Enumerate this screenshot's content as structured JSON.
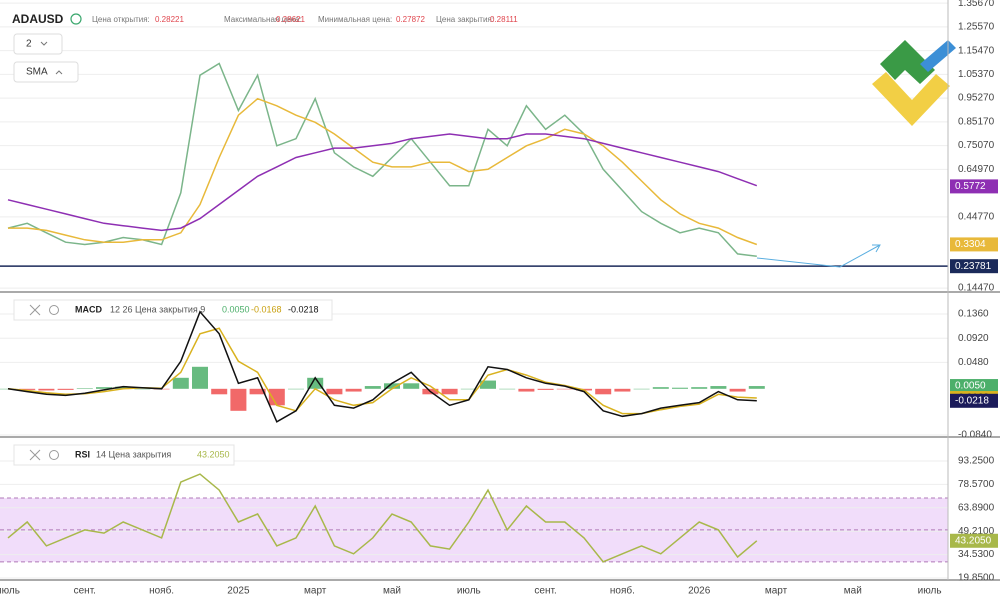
{
  "header": {
    "symbol": "ADAUSD",
    "open_label": "Цена открытия:",
    "open": "0.28221",
    "high_label": "Максимальная цена:",
    "high": "0.28621",
    "low_label": "Минимальная цена:",
    "low": "0.27872",
    "close_label": "Цена закрытия:",
    "close": "0.28111",
    "period": "2",
    "indicator": "SMA"
  },
  "chart_data": [
    {
      "type": "line",
      "grid": true,
      "ylim": [
        0.128,
        1.37
      ],
      "yticks": [
        {
          "value": 1.3567,
          "label": "1.35670"
        },
        {
          "value": 1.2557,
          "label": "1.25570"
        },
        {
          "value": 1.1547,
          "label": "1.15470"
        },
        {
          "value": 1.0537,
          "label": "1.05370"
        },
        {
          "value": 0.9527,
          "label": "0.95270"
        },
        {
          "value": 0.8517,
          "label": "0.85170"
        },
        {
          "value": 0.7507,
          "label": "0.75070"
        },
        {
          "value": 0.6497,
          "label": "0.64970"
        },
        {
          "value": 0.4477,
          "label": "0.44770"
        },
        {
          "value": 0.1447,
          "label": "0.14470"
        }
      ],
      "price_line": {
        "value": 0.23781,
        "color": "#1b2a5a"
      },
      "series": [
        {
          "color": "#7bb58a",
          "values": [
            0.4,
            0.42,
            0.38,
            0.34,
            0.33,
            0.34,
            0.36,
            0.35,
            0.33,
            0.55,
            1.05,
            1.1,
            0.9,
            1.05,
            0.75,
            0.78,
            0.95,
            0.72,
            0.66,
            0.62,
            0.7,
            0.78,
            0.68,
            0.58,
            0.58,
            0.82,
            0.75,
            0.92,
            0.82,
            0.88,
            0.8,
            0.65,
            0.56,
            0.47,
            0.42,
            0.38,
            0.4,
            0.38,
            0.29,
            0.28,
            null,
            null,
            null,
            null,
            null,
            null,
            null,
            null,
            null
          ]
        },
        {
          "color": "#e8b93a",
          "last": 0.3304,
          "values": [
            0.4,
            0.4,
            0.39,
            0.37,
            0.35,
            0.34,
            0.34,
            0.35,
            0.35,
            0.38,
            0.5,
            0.7,
            0.88,
            0.95,
            0.92,
            0.88,
            0.85,
            0.8,
            0.74,
            0.68,
            0.66,
            0.66,
            0.68,
            0.68,
            0.64,
            0.65,
            0.7,
            0.75,
            0.78,
            0.82,
            0.8,
            0.75,
            0.68,
            0.6,
            0.52,
            0.46,
            0.42,
            0.4,
            0.36,
            0.33,
            null,
            null,
            null,
            null,
            null,
            null,
            null,
            null,
            null
          ]
        },
        {
          "color": "#8e2fb3",
          "last": 0.5772,
          "values": [
            0.52,
            0.5,
            0.48,
            0.46,
            0.44,
            0.42,
            0.41,
            0.4,
            0.39,
            0.4,
            0.44,
            0.5,
            0.56,
            0.62,
            0.66,
            0.7,
            0.72,
            0.74,
            0.74,
            0.75,
            0.76,
            0.78,
            0.79,
            0.8,
            0.79,
            0.78,
            0.78,
            0.8,
            0.8,
            0.79,
            0.78,
            0.76,
            0.74,
            0.72,
            0.7,
            0.68,
            0.66,
            0.64,
            0.61,
            0.58,
            null,
            null,
            null,
            null,
            null,
            null,
            null,
            null,
            null
          ]
        }
      ]
    },
    {
      "type": "line",
      "grid": true,
      "label": "MACD",
      "params": "12 26 Цена закрытия 9",
      "ylim": [
        -0.0876,
        0.1705
      ],
      "yticks": [
        {
          "value": 0.136,
          "label": "0.1360"
        },
        {
          "value": 0.092,
          "label": "0.0920"
        },
        {
          "value": 0.048,
          "label": "0.0480"
        },
        {
          "value": -0.084,
          "label": "-0.0840"
        }
      ],
      "series": [
        {
          "kind": "bar",
          "color": "#4caf6a",
          "negative_color": "#ef4f4f",
          "last": {
            "value": 0.005,
            "label": "0.0050"
          },
          "values": [
            0,
            -0.002,
            -0.003,
            -0.002,
            0.001,
            0.003,
            0.004,
            0,
            -0.001,
            0.02,
            0.04,
            -0.01,
            -0.04,
            -0.01,
            -0.03,
            0,
            0.02,
            -0.01,
            -0.005,
            0.005,
            0.01,
            0.01,
            -0.01,
            -0.01,
            0,
            0.015,
            0,
            -0.005,
            -0.002,
            -0.001,
            -0.003,
            -0.01,
            -0.005,
            0,
            0.003,
            0.002,
            0.003,
            0.005,
            -0.005,
            0.005,
            null,
            null,
            null,
            null,
            null,
            null,
            null,
            null,
            null
          ]
        },
        {
          "kind": "line",
          "color": "#d9b21f",
          "last": {
            "value": -0.0168,
            "label": "-0.0168"
          },
          "values": [
            0,
            -0.003,
            -0.007,
            -0.01,
            -0.009,
            -0.005,
            0,
            0.002,
            0.001,
            0.03,
            0.1,
            0.11,
            0.05,
            0.03,
            -0.03,
            -0.04,
            0,
            -0.02,
            -0.03,
            -0.025,
            0,
            0.02,
            0.005,
            -0.02,
            -0.02,
            0.025,
            0.035,
            0.025,
            0.012,
            0.006,
            -0.002,
            -0.03,
            -0.045,
            -0.045,
            -0.038,
            -0.032,
            -0.028,
            -0.01,
            -0.015,
            -0.0168,
            null,
            null,
            null,
            null,
            null,
            null,
            null,
            null,
            null
          ]
        },
        {
          "kind": "line",
          "color": "#111111",
          "label_color": "#1b1b5a",
          "last": {
            "value": -0.0218,
            "label": "-0.0218"
          },
          "values": [
            0,
            -0.005,
            -0.01,
            -0.012,
            -0.008,
            -0.002,
            0.004,
            0.002,
            0,
            0.05,
            0.14,
            0.1,
            0.01,
            0.02,
            -0.06,
            -0.04,
            0.02,
            -0.03,
            -0.035,
            -0.02,
            0.01,
            0.03,
            -0.005,
            -0.03,
            -0.02,
            0.04,
            0.035,
            0.02,
            0.01,
            0.005,
            -0.005,
            -0.04,
            -0.05,
            -0.045,
            -0.035,
            -0.03,
            -0.025,
            -0.005,
            -0.02,
            -0.0218,
            null,
            null,
            null,
            null,
            null,
            null,
            null,
            null,
            null
          ]
        }
      ]
    },
    {
      "type": "line",
      "grid": true,
      "label": "RSI",
      "params": "14 Цена закрытия",
      "ylim": [
        18.6,
        106.4
      ],
      "levels": [
        70,
        50,
        30
      ],
      "band_color": "#f1ddfa",
      "yticks": [
        {
          "value": 93.25,
          "label": "93.2500"
        },
        {
          "value": 78.57,
          "label": "78.5700"
        },
        {
          "value": 63.89,
          "label": "63.8900"
        },
        {
          "value": 49.21,
          "label": "49.2100"
        },
        {
          "value": 34.53,
          "label": "34.5300"
        },
        {
          "value": 19.85,
          "label": "19.8500"
        }
      ],
      "categories": [
        "июль",
        null,
        null,
        null,
        "сент.",
        null,
        null,
        null,
        "нояб.",
        null,
        null,
        null,
        "2025",
        null,
        null,
        null,
        "март",
        null,
        null,
        null,
        "май",
        null,
        null,
        null,
        "июль",
        null,
        null,
        null,
        "сент.",
        null,
        null,
        null,
        "нояб.",
        null,
        null,
        null,
        "2026",
        null,
        null,
        null,
        "март",
        null,
        null,
        null,
        "май",
        null,
        null,
        null,
        "июль"
      ],
      "series": [
        {
          "kind": "line",
          "color": "#a8b84a",
          "last": {
            "value": 43.205,
            "label": "43.2050"
          },
          "values": [
            45,
            55,
            40,
            45,
            50,
            48,
            55,
            50,
            45,
            80,
            85,
            75,
            55,
            60,
            40,
            45,
            65,
            40,
            35,
            45,
            60,
            55,
            40,
            38,
            55,
            75,
            50,
            65,
            55,
            55,
            45,
            30,
            35,
            40,
            35,
            45,
            55,
            50,
            33,
            43.205,
            null,
            null,
            null,
            null,
            null,
            null,
            null,
            null,
            null
          ]
        }
      ]
    }
  ]
}
